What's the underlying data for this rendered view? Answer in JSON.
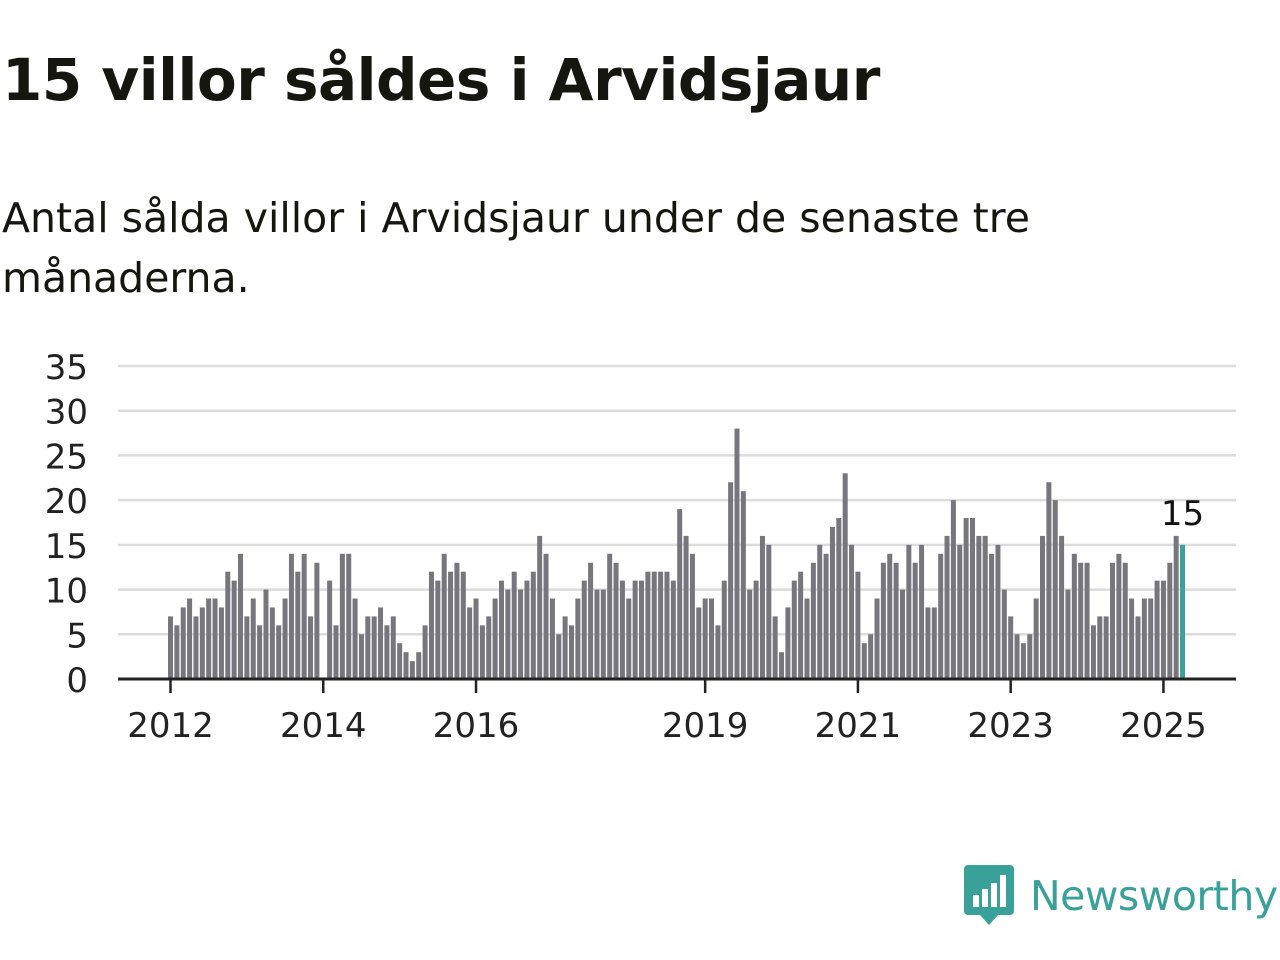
{
  "title": "15 villor såldes i Arvidsjaur",
  "subtitle": "Antal sålda villor i Arvidsjaur under de senaste tre månaderna.",
  "brand": {
    "name": "Newsworthy",
    "icon": "newsworthy-logo-icon",
    "color": "#3aa19a"
  },
  "colors": {
    "bar": "#77767d",
    "highlight": "#3aa19a",
    "grid": "#dcdcdc",
    "axis": "#222222"
  },
  "chart_data": {
    "type": "bar",
    "ylim": [
      0,
      35
    ],
    "yticks": [
      0,
      5,
      10,
      15,
      20,
      25,
      30,
      35
    ],
    "grid": true,
    "x_start": "2012-01",
    "x_ticks": [
      "2012",
      "2014",
      "2016",
      "2019",
      "2021",
      "2023",
      "2025"
    ],
    "highlight_label": "15",
    "values": [
      7,
      6,
      8,
      9,
      7,
      8,
      9,
      9,
      8,
      12,
      11,
      14,
      7,
      9,
      6,
      10,
      8,
      6,
      9,
      14,
      12,
      14,
      7,
      13,
      0,
      11,
      6,
      14,
      14,
      9,
      5,
      7,
      7,
      8,
      6,
      7,
      4,
      3,
      2,
      3,
      6,
      12,
      11,
      14,
      12,
      13,
      12,
      8,
      9,
      6,
      7,
      9,
      11,
      10,
      12,
      10,
      11,
      12,
      16,
      14,
      9,
      5,
      7,
      6,
      9,
      11,
      13,
      10,
      10,
      14,
      13,
      11,
      9,
      11,
      11,
      12,
      12,
      12,
      12,
      11,
      19,
      16,
      14,
      8,
      9,
      9,
      6,
      11,
      22,
      28,
      21,
      10,
      11,
      16,
      15,
      7,
      3,
      8,
      11,
      12,
      9,
      13,
      15,
      14,
      17,
      18,
      23,
      15,
      12,
      4,
      5,
      9,
      13,
      14,
      13,
      10,
      15,
      13,
      15,
      8,
      8,
      14,
      16,
      20,
      15,
      18,
      18,
      16,
      16,
      14,
      15,
      10,
      7,
      5,
      4,
      5,
      9,
      16,
      22,
      20,
      16,
      10,
      14,
      13,
      13,
      6,
      7,
      7,
      13,
      14,
      13,
      9,
      7,
      9,
      9,
      11,
      11,
      13,
      16,
      15
    ]
  }
}
